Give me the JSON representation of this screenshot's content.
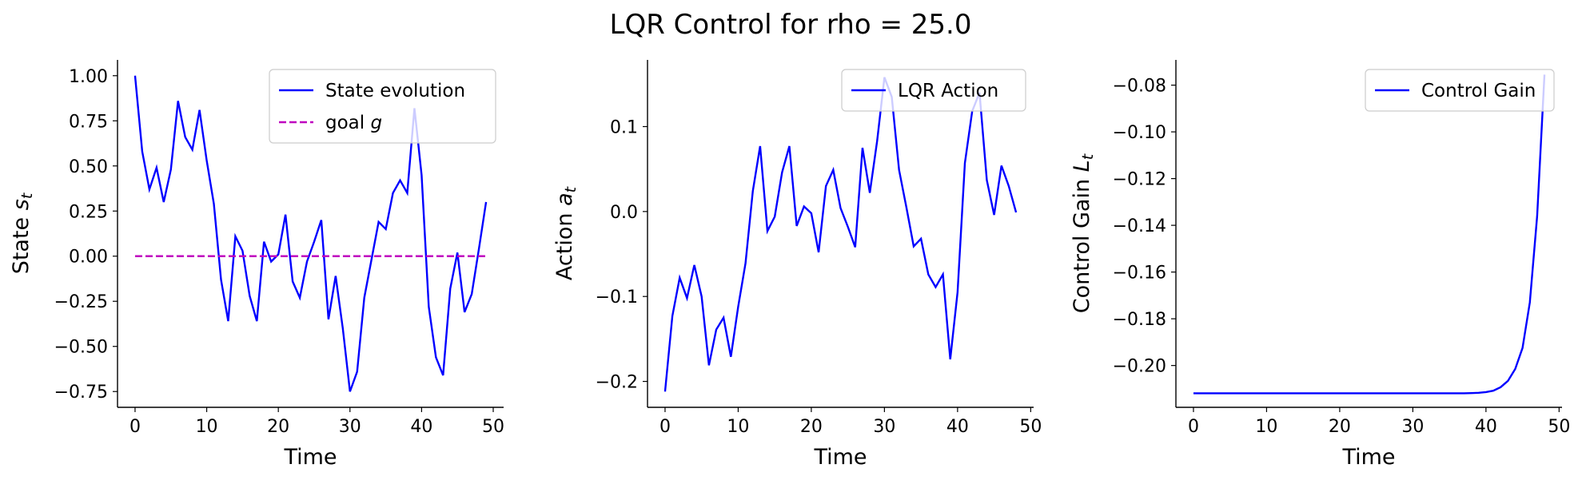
{
  "title": "LQR Control for rho = 25.0",
  "chart_data": [
    {
      "type": "line",
      "xlabel": "Time",
      "ylabel": {
        "main": "State ",
        "var": "s",
        "sub": "t"
      },
      "xlim": [
        -2.45,
        51.45
      ],
      "ylim": [
        -0.8375,
        1.0875
      ],
      "xticks": [
        0,
        10,
        20,
        30,
        40,
        50
      ],
      "yticks": [
        -0.75,
        -0.5,
        -0.25,
        0.0,
        0.25,
        0.5,
        0.75,
        1.0
      ],
      "ytick_labels": [
        "−0.75",
        "−0.50",
        "−0.25",
        "0.00",
        "0.25",
        "0.50",
        "0.75",
        "1.00"
      ],
      "legend": "top-right",
      "series": [
        {
          "name": "State evolution",
          "color": "#0000ff",
          "style": "solid",
          "x": [
            0,
            1,
            2,
            3,
            4,
            5,
            6,
            7,
            8,
            9,
            10,
            11,
            12,
            13,
            14,
            15,
            16,
            17,
            18,
            19,
            20,
            21,
            22,
            23,
            24,
            25,
            26,
            27,
            28,
            29,
            30,
            31,
            32,
            33,
            34,
            35,
            36,
            37,
            38,
            39,
            40,
            41,
            42,
            43,
            44,
            45,
            46,
            47,
            48,
            49
          ],
          "y": [
            1.0,
            0.58,
            0.37,
            0.49,
            0.3,
            0.48,
            0.86,
            0.66,
            0.59,
            0.81,
            0.53,
            0.29,
            -0.13,
            -0.36,
            0.11,
            0.03,
            -0.22,
            -0.36,
            0.08,
            -0.03,
            0.01,
            0.23,
            -0.14,
            -0.23,
            -0.03,
            0.08,
            0.2,
            -0.35,
            -0.11,
            -0.4,
            -0.75,
            -0.64,
            -0.23,
            -0.02,
            0.19,
            0.15,
            0.35,
            0.42,
            0.35,
            0.82,
            0.45,
            -0.28,
            -0.56,
            -0.66,
            -0.18,
            0.02,
            -0.31,
            -0.21,
            0.04,
            0.3
          ]
        },
        {
          "name": "goal ",
          "name_var": "g",
          "color": "#bf00bf",
          "style": "dashed",
          "x": [
            0,
            49
          ],
          "y": [
            0,
            0
          ]
        }
      ]
    },
    {
      "type": "line",
      "xlabel": "Time",
      "ylabel": {
        "main": "Action ",
        "var": "a",
        "sub": "t"
      },
      "xlim": [
        -2.4,
        50.4
      ],
      "ylim": [
        -0.2305,
        0.1785
      ],
      "xticks": [
        0,
        10,
        20,
        30,
        40,
        50
      ],
      "yticks": [
        -0.2,
        -0.1,
        0.0,
        0.1
      ],
      "ytick_labels": [
        "−0.2",
        "−0.1",
        "0.0",
        "0.1"
      ],
      "legend": "top-right",
      "series": [
        {
          "name": "LQR Action",
          "color": "#0000ff",
          "style": "solid",
          "x": [
            0,
            1,
            2,
            3,
            4,
            5,
            6,
            7,
            8,
            9,
            10,
            11,
            12,
            13,
            14,
            15,
            16,
            17,
            18,
            19,
            20,
            21,
            22,
            23,
            24,
            25,
            26,
            27,
            28,
            29,
            30,
            31,
            32,
            33,
            34,
            35,
            36,
            37,
            38,
            39,
            40,
            41,
            42,
            43,
            44,
            45,
            46,
            47,
            48
          ],
          "y": [
            -0.212,
            -0.123,
            -0.078,
            -0.102,
            -0.063,
            -0.1,
            -0.181,
            -0.139,
            -0.125,
            -0.171,
            -0.112,
            -0.061,
            0.024,
            0.077,
            -0.023,
            -0.006,
            0.046,
            0.077,
            -0.017,
            0.006,
            -0.002,
            -0.048,
            0.03,
            0.049,
            0.004,
            -0.018,
            -0.042,
            0.075,
            0.022,
            0.083,
            0.158,
            0.135,
            0.049,
            0.005,
            -0.041,
            -0.032,
            -0.074,
            -0.089,
            -0.074,
            -0.174,
            -0.095,
            0.057,
            0.118,
            0.14,
            0.037,
            -0.004,
            0.054,
            0.03,
            -0.001
          ]
        }
      ]
    },
    {
      "type": "line",
      "xlabel": "Time",
      "ylabel": {
        "main": "Control Gain ",
        "var": "L",
        "sub": "t"
      },
      "xlim": [
        -2.4,
        50.4
      ],
      "ylim": [
        -0.2179,
        -0.0692
      ],
      "xticks": [
        0,
        10,
        20,
        30,
        40,
        50
      ],
      "yticks": [
        -0.2,
        -0.18,
        -0.16,
        -0.14,
        -0.12,
        -0.1,
        -0.08
      ],
      "ytick_labels": [
        "−0.20",
        "−0.18",
        "−0.16",
        "−0.14",
        "−0.12",
        "−0.10",
        "−0.08"
      ],
      "legend": "top-right",
      "series": [
        {
          "name": "Control Gain",
          "color": "#0000ff",
          "style": "solid",
          "x": [
            0,
            1,
            2,
            3,
            4,
            5,
            6,
            7,
            8,
            9,
            10,
            11,
            12,
            13,
            14,
            15,
            16,
            17,
            18,
            19,
            20,
            21,
            22,
            23,
            24,
            25,
            26,
            27,
            28,
            29,
            30,
            31,
            32,
            33,
            34,
            35,
            36,
            37,
            38,
            39,
            40,
            41,
            42,
            43,
            44,
            45,
            46,
            47,
            48
          ],
          "y": [
            -0.2119,
            -0.2119,
            -0.2119,
            -0.2119,
            -0.2119,
            -0.2119,
            -0.2119,
            -0.2119,
            -0.2119,
            -0.2119,
            -0.2119,
            -0.2119,
            -0.2119,
            -0.2119,
            -0.2119,
            -0.2119,
            -0.2119,
            -0.2119,
            -0.2119,
            -0.2119,
            -0.2119,
            -0.2119,
            -0.2119,
            -0.2119,
            -0.2119,
            -0.2119,
            -0.2119,
            -0.2119,
            -0.2119,
            -0.2119,
            -0.2119,
            -0.2119,
            -0.2119,
            -0.2119,
            -0.2119,
            -0.2119,
            -0.2119,
            -0.2119,
            -0.2118,
            -0.2117,
            -0.2114,
            -0.2108,
            -0.2093,
            -0.2066,
            -0.2015,
            -0.1925,
            -0.173,
            -0.136,
            -0.0755
          ]
        }
      ]
    }
  ]
}
